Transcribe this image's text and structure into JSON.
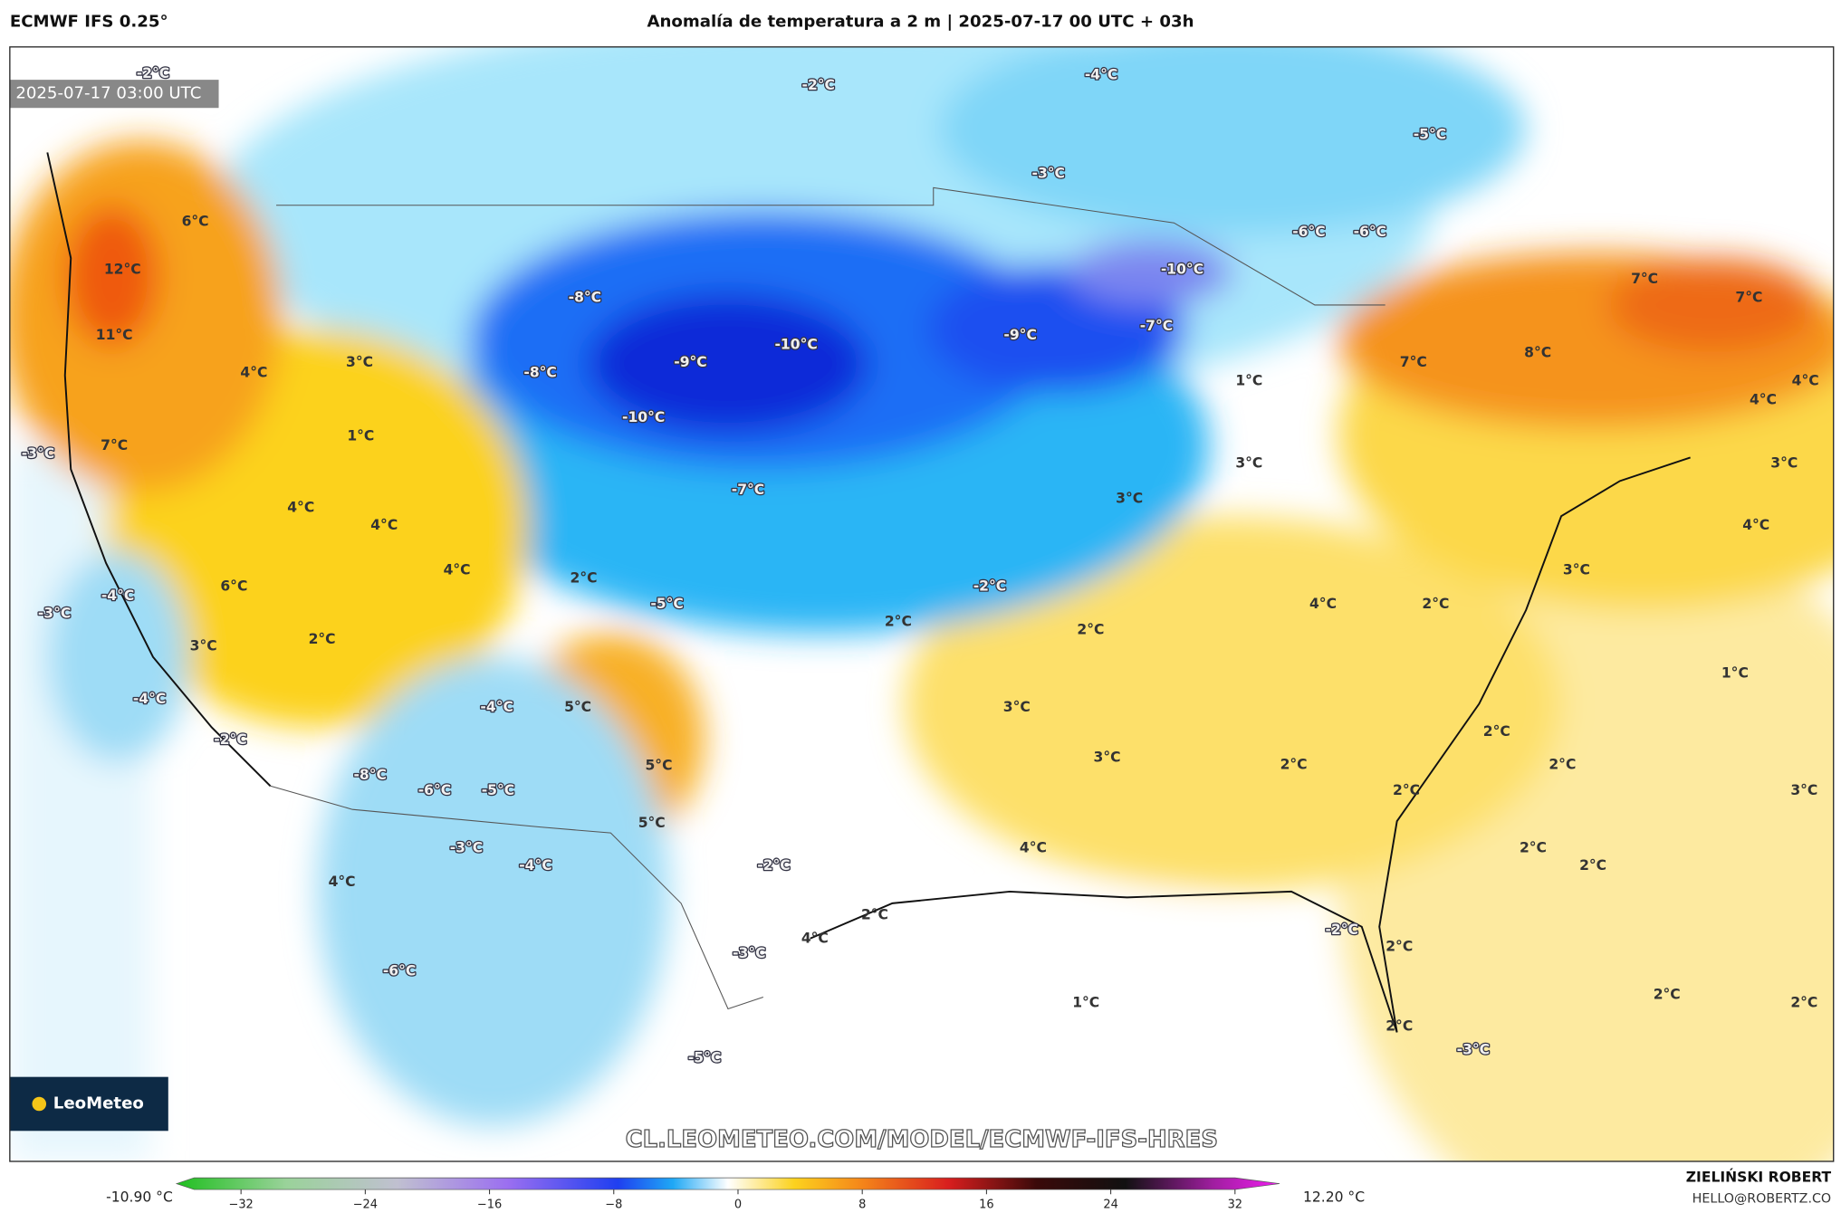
{
  "header": {
    "model": "ECMWF IFS 0.25°",
    "title": "Anomalía de temperatura a 2 m | 2025-07-17 00 UTC + 03h"
  },
  "map": {
    "timestamp": "2025-07-17 03:00 UTC",
    "watermark": "CL.LEOMETEO.COM/MODEL/ECMWF-IFS-HRES",
    "logo": "LeoMeteo",
    "labels": [
      "-2°C",
      "-2°C",
      "-4°C",
      "-5°C",
      "-3°C",
      "-6°C",
      "-6°C",
      "6°C",
      "12°C",
      "-8°C",
      "-10°C",
      "11°C",
      "-8°C",
      "-9°C",
      "-10°C",
      "-9°C",
      "-7°C",
      "7°C",
      "7°C",
      "8°C",
      "7°C",
      "1°C",
      "4°C",
      "3°C",
      "-10°C",
      "1°C",
      "-3°C",
      "7°C",
      "-7°C",
      "3°C",
      "3°C",
      "4°C",
      "4°C",
      "3°C",
      "4°C",
      "4°C",
      "4°C",
      "4°C",
      "2°C",
      "6°C",
      "-2°C",
      "3°C",
      "-3°C",
      "-4°C",
      "-5°C",
      "2°C",
      "2°C",
      "4°C",
      "2°C",
      "3°C",
      "2°C",
      "1°C",
      "-4°C",
      "5°C",
      "-4°C",
      "3°C",
      "-2°C",
      "2°C",
      "3°C",
      "2°C",
      "2°C",
      "-8°C",
      "5°C",
      "-6°C",
      "-5°C",
      "2°C",
      "3°C",
      "5°C",
      "-3°C",
      "4°C",
      "2°C",
      "2°C",
      "-4°C",
      "-2°C",
      "4°C",
      "2°C",
      "-2°C",
      "4°C",
      "2°C",
      "-3°C",
      "-6°C",
      "2°C",
      "2°C",
      "1°C",
      "2°C",
      "-3°C",
      "-5°C"
    ]
  },
  "colorbar": {
    "min_label": "-10.90 °C",
    "max_label": "12.20 °C",
    "ticks": [
      {
        "value": -32,
        "label": "−32"
      },
      {
        "value": -24,
        "label": "−24"
      },
      {
        "value": -16,
        "label": "−16"
      },
      {
        "value": -8,
        "label": "−8"
      },
      0,
      8,
      16,
      24,
      32
    ]
  },
  "credits": {
    "author": "ZIELIŃSKI ROBERT",
    "email": "HELLO@ROBERTZ.CO"
  }
}
